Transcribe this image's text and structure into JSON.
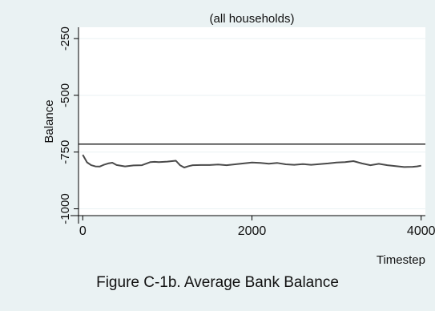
{
  "caption": "Figure C-1b. Average Bank Balance",
  "chart_data": {
    "type": "line",
    "title": "(all households)",
    "xlabel": "Timestep",
    "ylabel": "Balance",
    "xlim": [
      -50,
      4050
    ],
    "ylim": [
      -1030,
      -200
    ],
    "xticks": [
      0,
      2000,
      4000
    ],
    "xtick_labels": [
      "0",
      "2000",
      "4000"
    ],
    "yticks": [
      -250,
      -500,
      -750,
      -1000
    ],
    "ytick_labels": [
      "-250",
      "-500",
      "-750",
      "-1000"
    ],
    "grid": true,
    "reference_line": -715,
    "series": [
      {
        "x": [
          0,
          50,
          100,
          150,
          200,
          250,
          300,
          350,
          400,
          500,
          600,
          700,
          800,
          850,
          900,
          1000,
          1100,
          1150,
          1200,
          1250,
          1300,
          1400,
          1500,
          1600,
          1700,
          1800,
          1900,
          2000,
          2100,
          2200,
          2300,
          2400,
          2500,
          2600,
          2700,
          2800,
          2900,
          3000,
          3100,
          3200,
          3300,
          3400,
          3500,
          3600,
          3700,
          3800,
          3900,
          3950,
          4000
        ],
        "values": [
          -762,
          -795,
          -808,
          -813,
          -814,
          -806,
          -800,
          -797,
          -807,
          -813,
          -809,
          -808,
          -794,
          -793,
          -794,
          -792,
          -788,
          -808,
          -818,
          -812,
          -808,
          -807,
          -807,
          -805,
          -808,
          -804,
          -800,
          -796,
          -798,
          -801,
          -798,
          -804,
          -806,
          -803,
          -806,
          -803,
          -800,
          -796,
          -794,
          -790,
          -800,
          -808,
          -802,
          -808,
          -812,
          -816,
          -815,
          -813,
          -810
        ]
      }
    ]
  }
}
